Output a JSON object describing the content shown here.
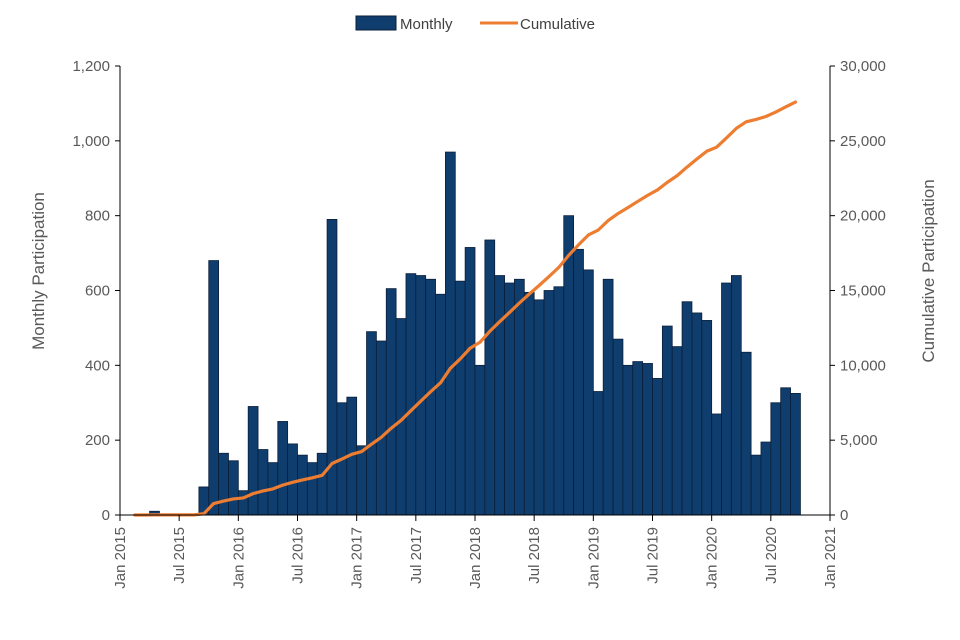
{
  "chart_data": {
    "type": "bar",
    "legend": {
      "placement": "top-center",
      "monthly_label": "Monthly",
      "cumulative_label": "Cumulative"
    },
    "ylabel_left": "Monthly Participation",
    "ylabel_right": "Cumulative Participation",
    "ylim_left": [
      0,
      1200
    ],
    "ylim_right": [
      0,
      30000
    ],
    "left_ticks": [
      "0",
      "200",
      "400",
      "600",
      "800",
      "1,000",
      "1,200"
    ],
    "right_ticks": [
      "0",
      "5,000",
      "10,000",
      "15,000",
      "20,000",
      "25,000",
      "30,000"
    ],
    "x_ticks": [
      "Jan 2015",
      "Jul 2015",
      "Jan 2016",
      "Jul 2016",
      "Jan 2017",
      "Jul 2017",
      "Jan 2018",
      "Jul 2018",
      "Jan 2019",
      "Jul 2019",
      "Jan 2020",
      "Jul 2020",
      "Jan 2021"
    ],
    "x_start": "Jan 2015",
    "grid": false,
    "colors": {
      "bar": "#0f3d6e",
      "bar_edge": "#0a1f3a",
      "line": "#ed7d31",
      "axis": "#000000",
      "text": "#595959"
    },
    "series": [
      {
        "name": "Monthly",
        "type": "bar",
        "axis": "left",
        "start": "Feb 2015",
        "values": [
          0,
          0,
          10,
          0,
          0,
          0,
          0,
          75,
          680,
          165,
          145,
          65,
          290,
          175,
          140,
          250,
          190,
          160,
          140,
          165,
          790,
          300,
          315,
          185,
          490,
          465,
          605,
          525,
          645,
          640,
          630,
          590,
          970,
          625,
          715,
          400,
          735,
          640,
          620,
          630,
          595,
          575,
          600,
          610,
          800,
          710,
          655,
          330,
          630,
          470,
          400,
          410,
          405,
          365,
          505,
          450,
          570,
          540,
          520,
          270,
          620,
          640,
          435,
          160,
          195,
          300,
          340,
          325
        ]
      },
      {
        "name": "Cumulative",
        "type": "line",
        "axis": "right",
        "start": "Feb 2015",
        "values": [
          0,
          0,
          10,
          10,
          10,
          10,
          10,
          85,
          765,
          930,
          1075,
          1140,
          1430,
          1605,
          1745,
          1995,
          2185,
          2345,
          2485,
          2650,
          3440,
          3740,
          4055,
          4240,
          4730,
          5195,
          5800,
          6325,
          6970,
          7610,
          8240,
          8830,
          9800,
          10425,
          11140,
          11540,
          12275,
          12915,
          13535,
          14165,
          14760,
          15335,
          15935,
          16545,
          17345,
          18055,
          18710,
          19040,
          19670,
          20140,
          20540,
          20950,
          21355,
          21720,
          22225,
          22675,
          23245,
          23785,
          24305,
          24575,
          25195,
          25835,
          26270,
          26430,
          26625,
          26925,
          27265,
          27590
        ]
      }
    ]
  }
}
